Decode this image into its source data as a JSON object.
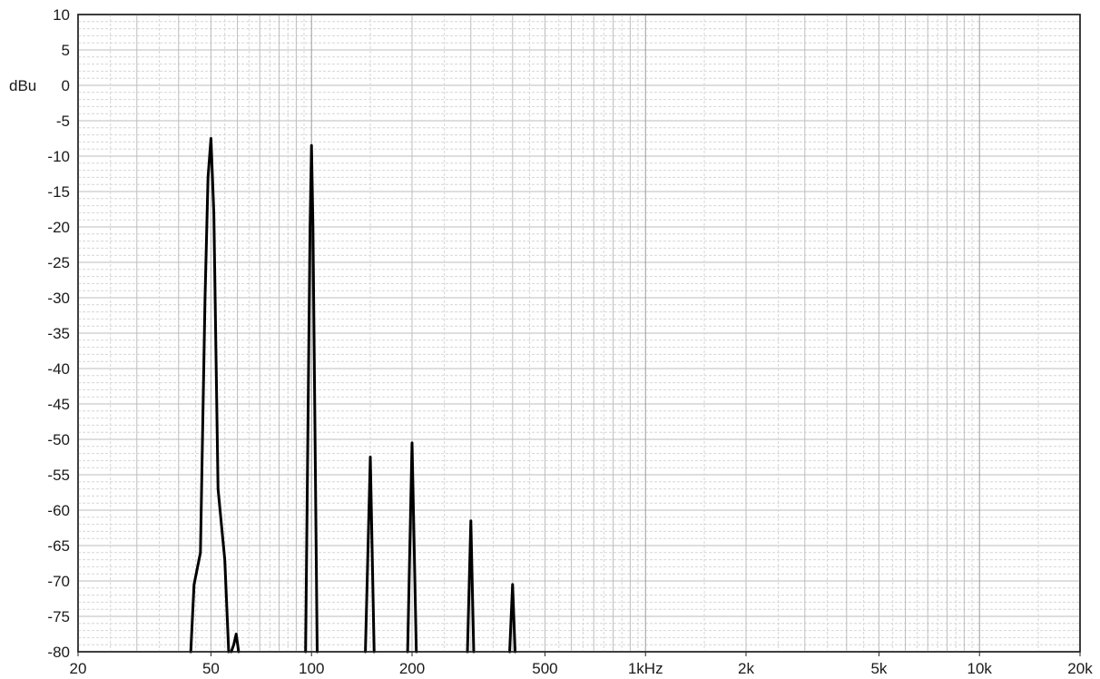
{
  "chart_data": {
    "type": "line",
    "title": "",
    "xlabel": "",
    "ylabel": "dBu",
    "x_scale": "log",
    "xlim": [
      20,
      20000
    ],
    "ylim": [
      -80,
      10
    ],
    "grid": true,
    "x_ticks": [
      {
        "value": 20,
        "label": "20"
      },
      {
        "value": 50,
        "label": "50"
      },
      {
        "value": 100,
        "label": "100"
      },
      {
        "value": 200,
        "label": "200"
      },
      {
        "value": 500,
        "label": "500"
      },
      {
        "value": 1000,
        "label": "1kHz"
      },
      {
        "value": 2000,
        "label": "2k"
      },
      {
        "value": 5000,
        "label": "5k"
      },
      {
        "value": 10000,
        "label": "10k"
      },
      {
        "value": 20000,
        "label": "20k"
      }
    ],
    "y_ticks": [
      10,
      5,
      0,
      -5,
      -10,
      -15,
      -20,
      -25,
      -30,
      -35,
      -40,
      -45,
      -50,
      -55,
      -60,
      -65,
      -70,
      -75,
      -80
    ],
    "series": [
      {
        "name": "",
        "color": "#000000",
        "segments": [
          [
            [
              43.5,
              -82
            ],
            [
              44.5,
              -70.5
            ],
            [
              46.5,
              -66
            ],
            [
              48,
              -30
            ],
            [
              49,
              -13
            ],
            [
              50,
              -7.5
            ],
            [
              51,
              -18
            ],
            [
              52.5,
              -57
            ],
            [
              55,
              -67
            ],
            [
              56.5,
              -82
            ]
          ],
          [
            [
              57.5,
              -82
            ],
            [
              58.5,
              -79
            ],
            [
              59.5,
              -77.5
            ],
            [
              60.5,
              -82
            ]
          ],
          [
            [
              96,
              -82
            ],
            [
              99,
              -20
            ],
            [
              100,
              -8.5
            ],
            [
              101,
              -20
            ],
            [
              104,
              -82
            ]
          ],
          [
            [
              145,
              -82
            ],
            [
              150,
              -52.5
            ],
            [
              154,
              -82
            ]
          ],
          [
            [
              194,
              -82
            ],
            [
              200,
              -50.5
            ],
            [
              206,
              -82
            ]
          ],
          [
            [
              293,
              -82
            ],
            [
              300,
              -61.5
            ],
            [
              306,
              -82
            ]
          ],
          [
            [
              392,
              -82
            ],
            [
              400,
              -70.5
            ],
            [
              407,
              -82
            ]
          ]
        ]
      }
    ]
  }
}
